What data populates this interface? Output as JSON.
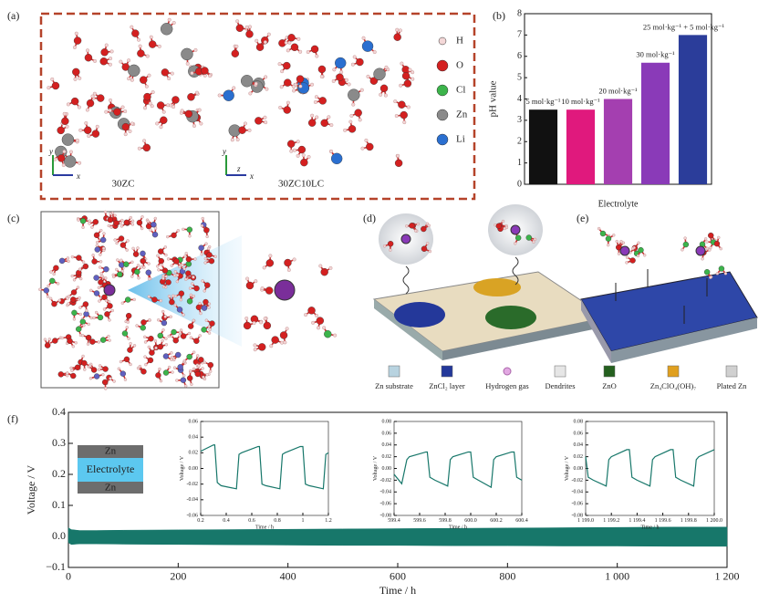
{
  "figure": {
    "panel_labels": [
      "(a)",
      "(b)",
      "(c)",
      "(d)",
      "(e)",
      "(f)"
    ],
    "a_legend": [
      "H",
      "O",
      "Cl",
      "Zn",
      "Li"
    ],
    "a_structures": [
      "30ZC",
      "30ZC10LC"
    ],
    "a_axes_left": [
      "y",
      "x"
    ],
    "a_axes_right": [
      "y",
      "x",
      "z"
    ],
    "d_legend": [
      "Zn substrate",
      "ZnCl₂ layer",
      "Hydrogen gas",
      "Dendrites",
      "ZnO",
      "Zn₄ClO₄(OH)₇",
      "Plated Zn"
    ],
    "f_cell": [
      "Zn",
      "Electrolyte",
      "Zn"
    ]
  },
  "chart_data": [
    {
      "type": "bar",
      "ylabel": "pH value",
      "xlabel": "Electrolyte",
      "categories": [
        "5 mol·kg⁻¹",
        "10 mol·kg⁻¹",
        "20 mol·kg⁻¹",
        "30 mol·kg⁻¹",
        "25 mol·kg⁻¹ + 5 mol·kg⁻¹"
      ],
      "values": [
        3.5,
        3.5,
        4.0,
        5.7,
        7.0
      ],
      "colors": [
        "#111111",
        "#e0197d",
        "#a43fb0",
        "#8a3ab8",
        "#2b3d9a"
      ],
      "ylim": [
        0,
        8
      ],
      "yticks": [
        0,
        1,
        2,
        3,
        4,
        5,
        6,
        7,
        8
      ]
    },
    {
      "type": "band",
      "xlabel": "Time / h",
      "ylabel": "Voltage / V",
      "x": [
        0,
        5,
        20,
        50,
        100,
        200,
        300,
        400,
        500,
        600,
        700,
        800,
        900,
        1000,
        1100,
        1200
      ],
      "series": [
        {
          "color": "#17776a",
          "values": [
            0.028,
            0.022,
            0.019,
            0.019,
            0.02,
            0.021,
            0.022,
            0.023,
            0.024,
            0.025,
            0.026,
            0.027,
            0.028,
            0.029,
            0.03,
            0.03
          ]
        },
        {
          "color": "#17776a",
          "values": [
            -0.02,
            -0.026,
            -0.024,
            -0.024,
            -0.025,
            -0.026,
            -0.027,
            -0.028,
            -0.029,
            -0.029,
            -0.03,
            -0.03,
            -0.031,
            -0.031,
            -0.032,
            -0.032
          ]
        }
      ],
      "xlim": [
        0,
        1200
      ],
      "xticks": [
        0,
        200,
        400,
        600,
        800,
        {
          "value": 1000,
          "label": "1 000"
        },
        {
          "value": 1200,
          "label": "1 200"
        }
      ],
      "ylim": [
        -0.1,
        0.4
      ],
      "yticks": [
        {
          "value": -0.1,
          "label": "−0.1"
        },
        {
          "value": 0,
          "label": "0.0"
        },
        0.1,
        0.2,
        0.3,
        0.4
      ]
    },
    {
      "type": "line",
      "xlabel": "Time / h",
      "ylabel": "Voltage / V",
      "color": "#17776a",
      "x": [
        0.2,
        0.3,
        0.31,
        0.33,
        0.36,
        0.48,
        0.5,
        0.52,
        0.65,
        0.66,
        0.68,
        0.71,
        0.82,
        0.84,
        0.86,
        0.98,
        1.0,
        1.02,
        1.05,
        1.16,
        1.18,
        1.2
      ],
      "values": [
        0.022,
        0.03,
        0.03,
        -0.018,
        -0.022,
        -0.026,
        0.018,
        0.02,
        0.028,
        0.028,
        -0.02,
        -0.022,
        -0.026,
        0.018,
        0.02,
        0.028,
        0.028,
        -0.02,
        -0.022,
        -0.026,
        0.018,
        0.02
      ],
      "xlim": [
        0.2,
        1.2
      ],
      "xticks": [
        0.2,
        0.4,
        0.6,
        0.8,
        1,
        1.2
      ],
      "ylim": [
        -0.06,
        0.06
      ],
      "yticks": [
        -0.06,
        -0.04,
        -0.02,
        {
          "value": 0,
          "label": "0.00"
        },
        0.02,
        0.04,
        0.06
      ]
    },
    {
      "type": "line",
      "xlabel": "Time / h",
      "ylabel": "Voltage / V",
      "color": "#17776a",
      "x": [
        599.4,
        599.46,
        599.5,
        599.52,
        599.65,
        599.66,
        599.68,
        599.72,
        599.82,
        599.84,
        599.86,
        599.98,
        600.0,
        600.02,
        600.06,
        600.16,
        600.18,
        600.2,
        600.32,
        600.34,
        600.36,
        600.4
      ],
      "values": [
        -0.01,
        -0.026,
        0.015,
        0.02,
        0.028,
        0.028,
        -0.015,
        -0.02,
        -0.03,
        0.015,
        0.02,
        0.028,
        0.028,
        -0.015,
        -0.02,
        -0.032,
        0.015,
        0.02,
        0.028,
        0.028,
        -0.015,
        -0.02
      ],
      "xlim": [
        599.4,
        600.4
      ],
      "xticks": [
        599.4,
        599.6,
        599.8,
        {
          "value": 600,
          "label": "600.0"
        },
        600.2,
        600.4
      ],
      "ylim": [
        -0.08,
        0.08
      ],
      "yticks": [
        -0.08,
        -0.06,
        -0.04,
        -0.02,
        {
          "value": 0,
          "label": "0.00"
        },
        0.02,
        0.04,
        0.06,
        0.08
      ]
    },
    {
      "type": "line",
      "xlabel": "Time / h",
      "ylabel": "Voltage / V",
      "color": "#17776a",
      "x": [
        1199.0,
        1199.02,
        1199.06,
        1199.16,
        1199.18,
        1199.2,
        1199.32,
        1199.34,
        1199.36,
        1199.4,
        1199.5,
        1199.52,
        1199.54,
        1199.66,
        1199.68,
        1199.7,
        1199.74,
        1199.84,
        1199.86,
        1199.88,
        1200.0
      ],
      "values": [
        0.02,
        -0.015,
        -0.02,
        -0.03,
        0.015,
        0.02,
        0.032,
        0.032,
        -0.015,
        -0.02,
        -0.03,
        0.015,
        0.02,
        0.032,
        0.032,
        -0.015,
        -0.02,
        -0.03,
        0.015,
        0.02,
        0.032
      ],
      "xlim": [
        1199.0,
        1200.0
      ],
      "xticks": [
        {
          "value": 1199,
          "label": "1 199.0"
        },
        {
          "value": 1199.2,
          "label": "1 199.2"
        },
        {
          "value": 1199.4,
          "label": "1 199.4"
        },
        {
          "value": 1199.6,
          "label": "1 199.6"
        },
        {
          "value": 1199.8,
          "label": "1 199.8"
        },
        {
          "value": 1200,
          "label": "1 200.0"
        }
      ],
      "ylim": [
        -0.08,
        0.08
      ],
      "yticks": [
        -0.08,
        -0.06,
        -0.04,
        -0.02,
        {
          "value": 0,
          "label": "0.00"
        },
        0.02,
        0.04,
        0.06,
        0.08
      ]
    }
  ]
}
